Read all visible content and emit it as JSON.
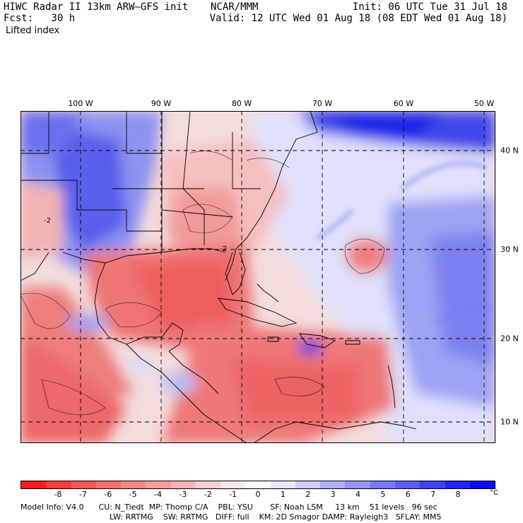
{
  "header": {
    "title": "HIWC Radar II 13km ARW–GFS init",
    "center": "NCAR/MMM",
    "init": "Init: 06 UTC Tue 31 Jul 18",
    "fcst": "Fcst:   30 h",
    "valid": "Valid: 12 UTC Wed 01 Aug 18 (08 EDT Wed 01 Aug 18)",
    "field": "Lifted index"
  },
  "map": {
    "lon_labels": [
      "100 W",
      "90 W",
      "80 W",
      "70 W",
      "60 W",
      "50 W"
    ],
    "lat_labels": [
      "40 N",
      "30 N",
      "20 N",
      "10 N"
    ],
    "contour_labels": [
      "-2",
      "-2"
    ]
  },
  "colorbar": {
    "ticks": [
      "-8",
      "-7",
      "-6",
      "-5",
      "-4",
      "-3",
      "-2",
      "-1",
      "0",
      "1",
      "2",
      "3",
      "4",
      "5",
      "6",
      "7",
      "8"
    ],
    "unit": "°C",
    "colors": [
      "#ff1a1a",
      "#ff3b3b",
      "#ff5656",
      "#ff6e6e",
      "#ff8585",
      "#ff9c9c",
      "#ffb4b4",
      "#ffcdcd",
      "#ffe6e6",
      "#ffffff",
      "#e6e6ff",
      "#cdcdff",
      "#b0b0ff",
      "#9494ff",
      "#7878ff",
      "#5c5cff",
      "#3f3fff",
      "#2222ff",
      "#0b0bff"
    ]
  },
  "footer": {
    "line1": "Model Info: V4.0      CU: N_Tiedt  MP: Thomp C/A    PBL: YSU       SF: Noah LSM     13 km    51 levels   96 sec",
    "line2": "LW: RRTMG    SW: RRTMG   DIFF: full    KM: 2D Smagor DAMP: Rayleigh3   SFLAY: MM5"
  }
}
